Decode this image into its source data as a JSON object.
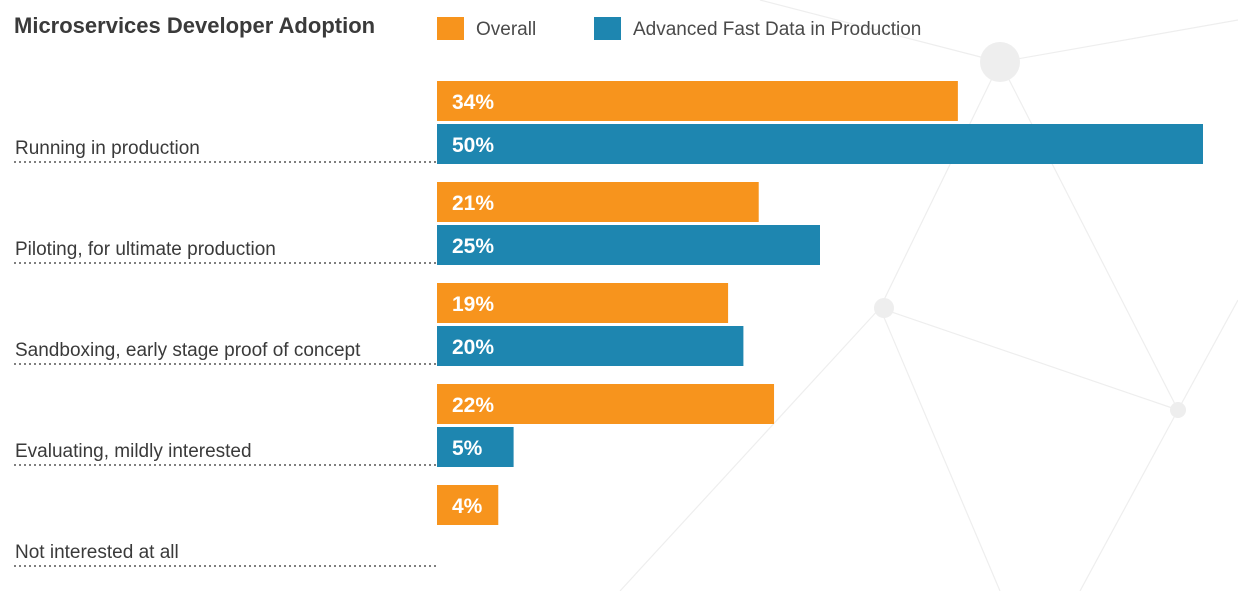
{
  "chart_data": {
    "type": "bar",
    "orientation": "horizontal",
    "title": "Microservices Developer Adoption",
    "categories": [
      "Running in production",
      "Piloting, for ultimate production",
      "Sandboxing, early stage proof of concept",
      "Evaluating, mildly interested",
      "Not interested at all"
    ],
    "series": [
      {
        "name": "Overall",
        "color": "#f7941d",
        "values": [
          34,
          21,
          19,
          22,
          4
        ],
        "labels": [
          "34%",
          "21%",
          "19%",
          "22%",
          "4%"
        ]
      },
      {
        "name": "Advanced Fast Data in Production",
        "color": "#1e86b0",
        "values": [
          50,
          25,
          20,
          5,
          null
        ],
        "labels": [
          "50%",
          "25%",
          "20%",
          "5%",
          ""
        ]
      }
    ],
    "xlim": [
      0,
      50
    ],
    "legend": "top",
    "grid": false
  }
}
